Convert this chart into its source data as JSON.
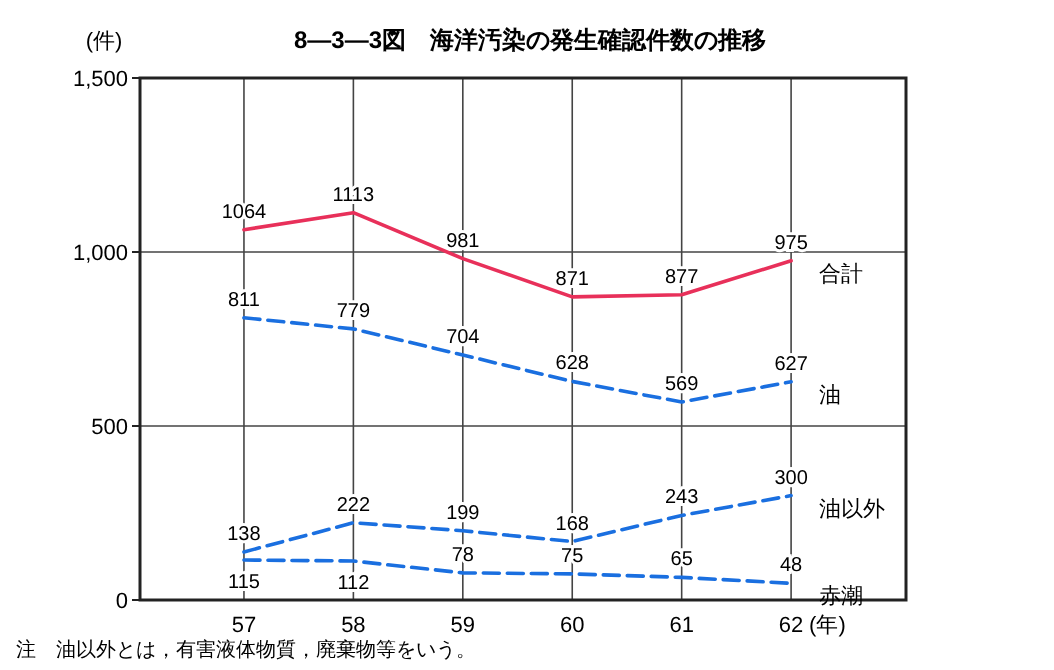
{
  "chart_data": {
    "type": "line",
    "title": "8―3―3図　海洋汚染の発生確認件数の推移",
    "ylabel": "(件)",
    "xlabel": "(年)",
    "categories": [
      "57",
      "58",
      "59",
      "60",
      "61",
      "62"
    ],
    "series": [
      {
        "name": "合計",
        "color": "#e8305a",
        "line_style": "solid",
        "values": [
          1064,
          1113,
          981,
          871,
          877,
          975
        ]
      },
      {
        "name": "油",
        "color": "#1a6fe0",
        "line_style": "dashed",
        "values": [
          811,
          779,
          704,
          628,
          569,
          627
        ]
      },
      {
        "name": "油以外",
        "color": "#1a6fe0",
        "line_style": "dashed",
        "values": [
          138,
          222,
          199,
          168,
          243,
          300
        ]
      },
      {
        "name": "赤潮",
        "color": "#1a6fe0",
        "line_style": "dashed",
        "values": [
          115,
          112,
          78,
          75,
          65,
          48
        ]
      }
    ],
    "ylim": [
      0,
      1500
    ],
    "yticks": [
      0,
      500,
      {
        "value": 1000,
        "label": "1,000"
      },
      {
        "value": 1500,
        "label": "1,500"
      }
    ],
    "grid": true,
    "legend": false,
    "data_labels": true,
    "marker": "none",
    "annotations": [
      "注　油以外とは，有害液体物質，廃棄物等をいう。"
    ]
  }
}
